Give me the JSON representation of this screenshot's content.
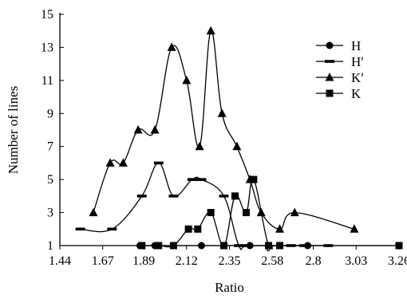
{
  "chart_data": {
    "type": "line",
    "title": "",
    "xlabel": "Ratio",
    "ylabel": "Number of lines",
    "xlim": [
      1.44,
      3.26
    ],
    "ylim": [
      1,
      15
    ],
    "x_ticks": [
      "1.44",
      "1.67",
      "1.89",
      "2.12",
      "2.35",
      "2.58",
      "2.8",
      "3.03",
      "3.26"
    ],
    "y_ticks": [
      "1",
      "3",
      "5",
      "7",
      "9",
      "11",
      "13",
      "15"
    ],
    "grid": false,
    "legend_position": "top-right",
    "series": [
      {
        "name": "H",
        "marker": "circle",
        "color": "#000000",
        "x": [
          1.87,
          1.95,
          2.2,
          2.46,
          2.77
        ],
        "y": [
          1,
          1,
          1,
          1,
          1
        ]
      },
      {
        "name": "H′",
        "marker": "dash",
        "color": "#000000",
        "x": [
          1.55,
          1.72,
          1.88,
          1.97,
          2.05,
          2.15,
          2.2,
          2.32,
          2.4,
          2.45,
          2.68,
          2.75,
          2.88
        ],
        "y": [
          2,
          2,
          4,
          6,
          4,
          5,
          5,
          4,
          1,
          1,
          1,
          1,
          1
        ]
      },
      {
        "name": "K′",
        "marker": "triangle",
        "color": "#000000",
        "x": [
          1.62,
          1.71,
          1.78,
          1.86,
          1.95,
          2.04,
          2.12,
          2.19,
          2.25,
          2.31,
          2.39,
          2.46,
          2.52,
          2.62,
          2.7,
          3.02
        ],
        "y": [
          3,
          6,
          6,
          8,
          8,
          13,
          11,
          7,
          14,
          9,
          7,
          5,
          3,
          2,
          3,
          2
        ]
      },
      {
        "name": "K",
        "marker": "square",
        "color": "#000000",
        "x": [
          1.88,
          1.97,
          2.05,
          2.13,
          2.18,
          2.25,
          2.32,
          2.38,
          2.44,
          2.48,
          2.56,
          2.62,
          3.26
        ],
        "y": [
          1,
          1,
          1,
          2,
          2,
          3,
          1,
          4,
          3,
          5,
          1,
          1,
          1
        ]
      }
    ]
  }
}
